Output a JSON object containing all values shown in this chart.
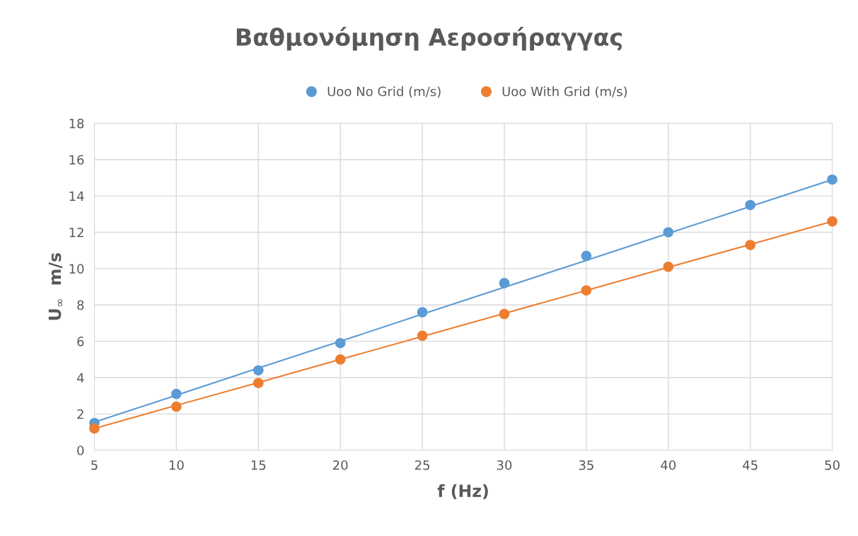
{
  "chart_data": {
    "type": "scatter",
    "title": "Βαθμονόμηση Αεροσήραγγας",
    "xlabel": "f (Hz)",
    "ylabel": "U$_{∞}$  m/s",
    "x": [
      5,
      10,
      15,
      20,
      25,
      30,
      35,
      40,
      45,
      50
    ],
    "series": [
      {
        "name": "Uoo No Grid (m/s)",
        "marker": "circle",
        "color": "#5b9bd5",
        "values": [
          1.5,
          3.1,
          4.4,
          5.9,
          7.6,
          9.2,
          10.7,
          12.0,
          13.5,
          14.9
        ]
      },
      {
        "name": "Uoo With Grid (m/s)",
        "marker": "circle",
        "color": "#ed7d31",
        "values": [
          1.2,
          2.4,
          3.7,
          5.0,
          6.3,
          7.5,
          8.8,
          10.1,
          11.3,
          12.6
        ]
      },
      {
        "type": "line",
        "color": "#5b9bd5",
        "values": [
          1.55,
          3.03,
          4.52,
          6.0,
          7.49,
          8.97,
          10.45,
          11.94,
          13.42,
          14.9
        ]
      },
      {
        "type": "line",
        "color": "#ed7d31",
        "values": [
          1.2,
          2.47,
          3.73,
          5.0,
          6.27,
          7.53,
          8.8,
          10.07,
          11.33,
          12.6
        ]
      }
    ],
    "xlim": [
      5,
      50
    ],
    "xticks": [
      5,
      10,
      15,
      20,
      25,
      30,
      35,
      40,
      45,
      50
    ],
    "ylim": [
      0,
      18
    ],
    "yticks": [
      0,
      2,
      4,
      6,
      8,
      10,
      12,
      14,
      16,
      18
    ],
    "grid": true,
    "legend": "top"
  }
}
